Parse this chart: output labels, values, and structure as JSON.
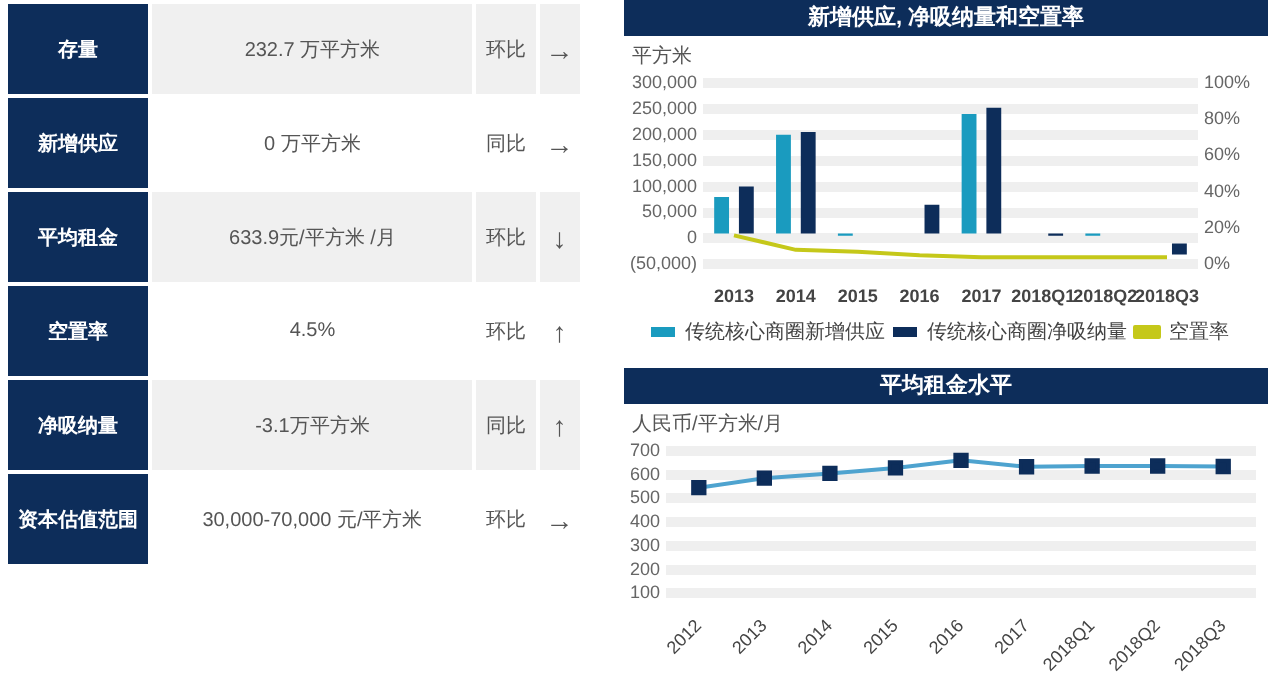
{
  "chart_data": [
    {
      "type": "other",
      "annotations": [
        "存量",
        "232.7 万平方米",
        "环比",
        "→",
        "新增供应",
        "0 万平方米",
        "同比",
        "→",
        "平均租金",
        "633.9元/平方米 /月",
        "环比",
        "↓",
        "空置率",
        "4.5%",
        "环比",
        "↑",
        "净吸纳量",
        "-3.1万平方米",
        "同比",
        "↑",
        "资本估值范围",
        "30,000-70,000 元/平方米",
        "环比",
        "→"
      ]
    },
    {
      "type": "bar",
      "title": "新增供应, 净吸纳量和空置率",
      "ylabel": "平方米",
      "categories": [
        "2013",
        "2014",
        "2015",
        "2016",
        "2017",
        "2018Q1",
        "2018Q2",
        "2018Q3"
      ],
      "series": [
        {
          "name": "传统核心商圈新增供应",
          "color": "#1a9bbf",
          "values": [
            80000,
            200000,
            5000,
            0,
            240000,
            0,
            5000,
            0
          ]
        },
        {
          "name": "传统核心商圈净吸纳量",
          "color": "#0d2d5a",
          "values": [
            100000,
            205000,
            null,
            65000,
            252000,
            5000,
            null,
            -31000
          ]
        },
        {
          "name": "空置率",
          "type": "line",
          "axis": "y2",
          "color": "#c5c81a",
          "values": [
            16,
            8,
            7,
            5,
            4,
            4,
            4,
            4
          ]
        }
      ],
      "ylim": [
        -50000,
        300000
      ],
      "yticks": [
        {
          "value": -50000,
          "label": "(50,000)"
        },
        {
          "value": 0,
          "label": "0"
        },
        {
          "value": 50000,
          "label": "50,000"
        },
        {
          "value": 100000,
          "label": "100,000"
        },
        {
          "value": 150000,
          "label": "150,000"
        },
        {
          "value": 200000,
          "label": "200,000"
        },
        {
          "value": 250000,
          "label": "250,000"
        },
        {
          "value": 300000,
          "label": "300,000"
        }
      ],
      "y2lim": [
        0,
        100
      ],
      "y2ticks": [
        {
          "value": 0,
          "label": "0%"
        },
        {
          "value": 20,
          "label": "20%"
        },
        {
          "value": 40,
          "label": "40%"
        },
        {
          "value": 60,
          "label": "60%"
        },
        {
          "value": 80,
          "label": "80%"
        },
        {
          "value": 100,
          "label": "100%"
        }
      ],
      "grid": "y",
      "legend": "bottom",
      "marker": "none"
    },
    {
      "type": "line",
      "title": "平均租金水平",
      "ylabel": "人民币/平方米/月",
      "categories": [
        "2012",
        "2013",
        "2014",
        "2015",
        "2016",
        "2017",
        "2018Q1",
        "2018Q2",
        "2018Q3"
      ],
      "series": [
        {
          "color": "#4ea3cf",
          "colors": [
            "#0d2d5a",
            "#0d2d5a",
            "#0d2d5a",
            "#0d2d5a",
            "#0d2d5a",
            "#0d2d5a",
            "#0d2d5a",
            "#0d2d5a",
            "#0d2d5a"
          ],
          "values": [
            545,
            585,
            605,
            628,
            660,
            633,
            636,
            636,
            634
          ]
        }
      ],
      "ylim": [
        100,
        700
      ],
      "yticks": [
        100,
        200,
        300,
        400,
        500,
        600,
        700
      ],
      "grid": "y",
      "legend": false,
      "marker": "square"
    }
  ]
}
